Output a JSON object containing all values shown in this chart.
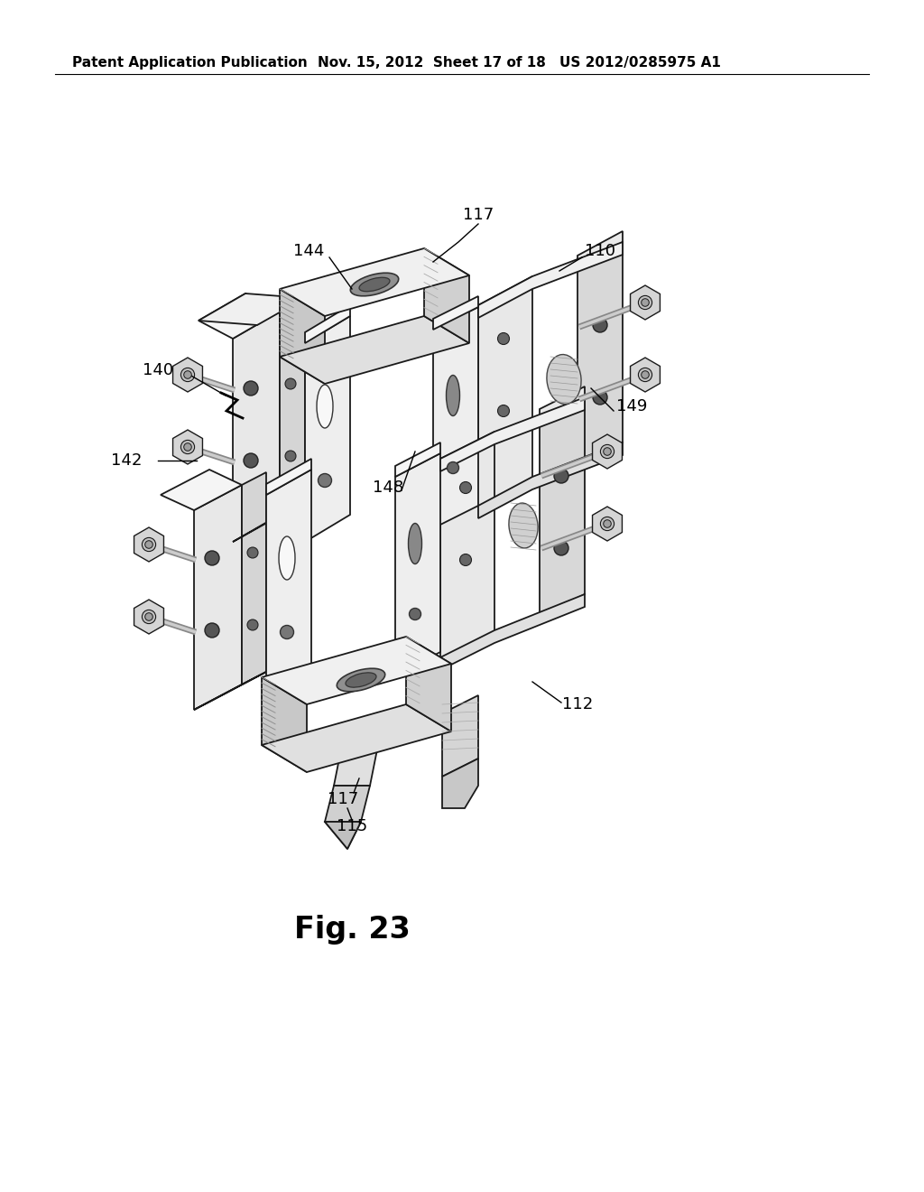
{
  "background_color": "#ffffff",
  "header_left": "Patent Application Publication",
  "header_mid": "Nov. 15, 2012  Sheet 17 of 18",
  "header_right": "US 2012/0285975 A1",
  "fig_caption": "Fig. 23",
  "line_color": "#000000",
  "edge_color": "#1a1a1a",
  "face_light": "#f2f2f2",
  "face_mid": "#d8d8d8",
  "face_dark": "#b8b8b8",
  "face_darker": "#989898",
  "label_fontsize": 13,
  "caption_fontsize": 24
}
